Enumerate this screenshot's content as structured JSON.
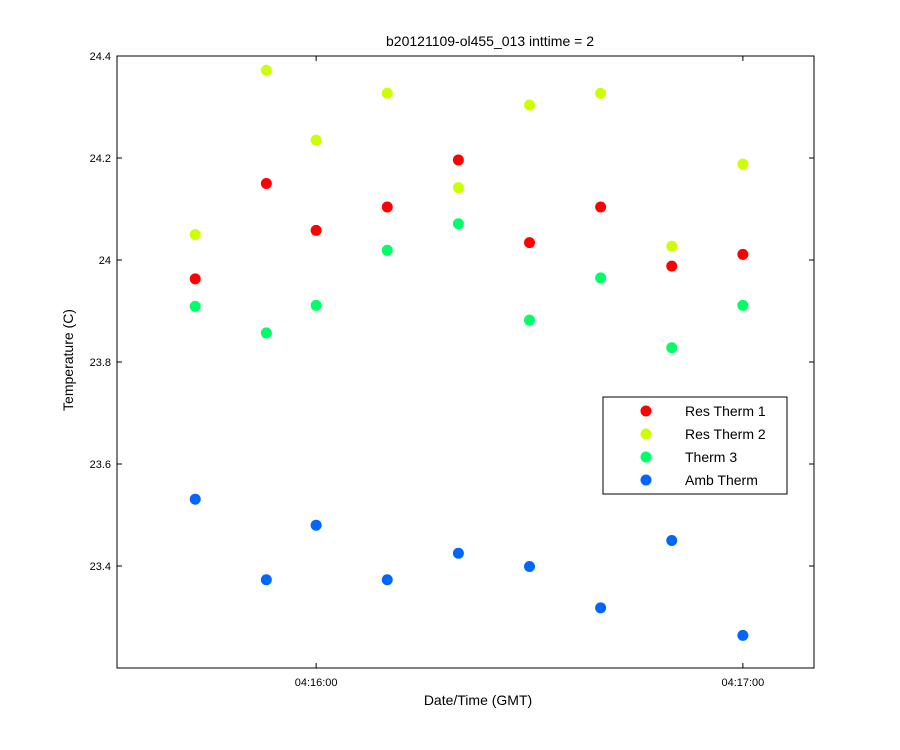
{
  "chart_data": {
    "type": "scatter",
    "title": "b20121109-ol455_013 inttime = 2",
    "xlabel": "Date/Time (GMT)",
    "ylabel": "Temperature (C)",
    "x_tick_labels": [
      "04:16:00",
      "04:17:00"
    ],
    "y_ticks": [
      23.4,
      23.6,
      23.8,
      24,
      24.2,
      24.4
    ],
    "y_tick_labels": [
      "23.4",
      "23.6",
      "23.8",
      "24",
      "24.2",
      "24.4"
    ],
    "xlim": [
      "04:15:32",
      "04:17:10"
    ],
    "ylim": [
      23.2,
      24.4
    ],
    "grid": false,
    "legend_position": "right",
    "x": [
      "04:15:43",
      "04:15:53",
      "04:16:00",
      "04:16:10",
      "04:16:20",
      "04:16:30",
      "04:16:40",
      "04:16:50",
      "04:17:00"
    ],
    "series": [
      {
        "name": "Res Therm 1",
        "color": "#ff0000",
        "values": [
          23.963,
          24.15,
          24.058,
          24.104,
          24.196,
          24.034,
          24.104,
          23.988,
          24.011
        ]
      },
      {
        "name": "Res Therm 2",
        "color": "#ccff00",
        "values": [
          24.05,
          24.372,
          24.235,
          24.327,
          24.142,
          24.304,
          24.327,
          24.027,
          24.188
        ]
      },
      {
        "name": "Therm 3",
        "color": "#00ff66",
        "values": [
          23.909,
          23.857,
          23.911,
          24.019,
          24.071,
          23.882,
          23.965,
          23.828,
          23.911
        ]
      },
      {
        "name": "Amb Therm",
        "color": "#0066ff",
        "values": [
          23.531,
          23.373,
          23.48,
          23.373,
          23.425,
          23.399,
          23.318,
          23.45,
          23.264
        ]
      }
    ]
  }
}
